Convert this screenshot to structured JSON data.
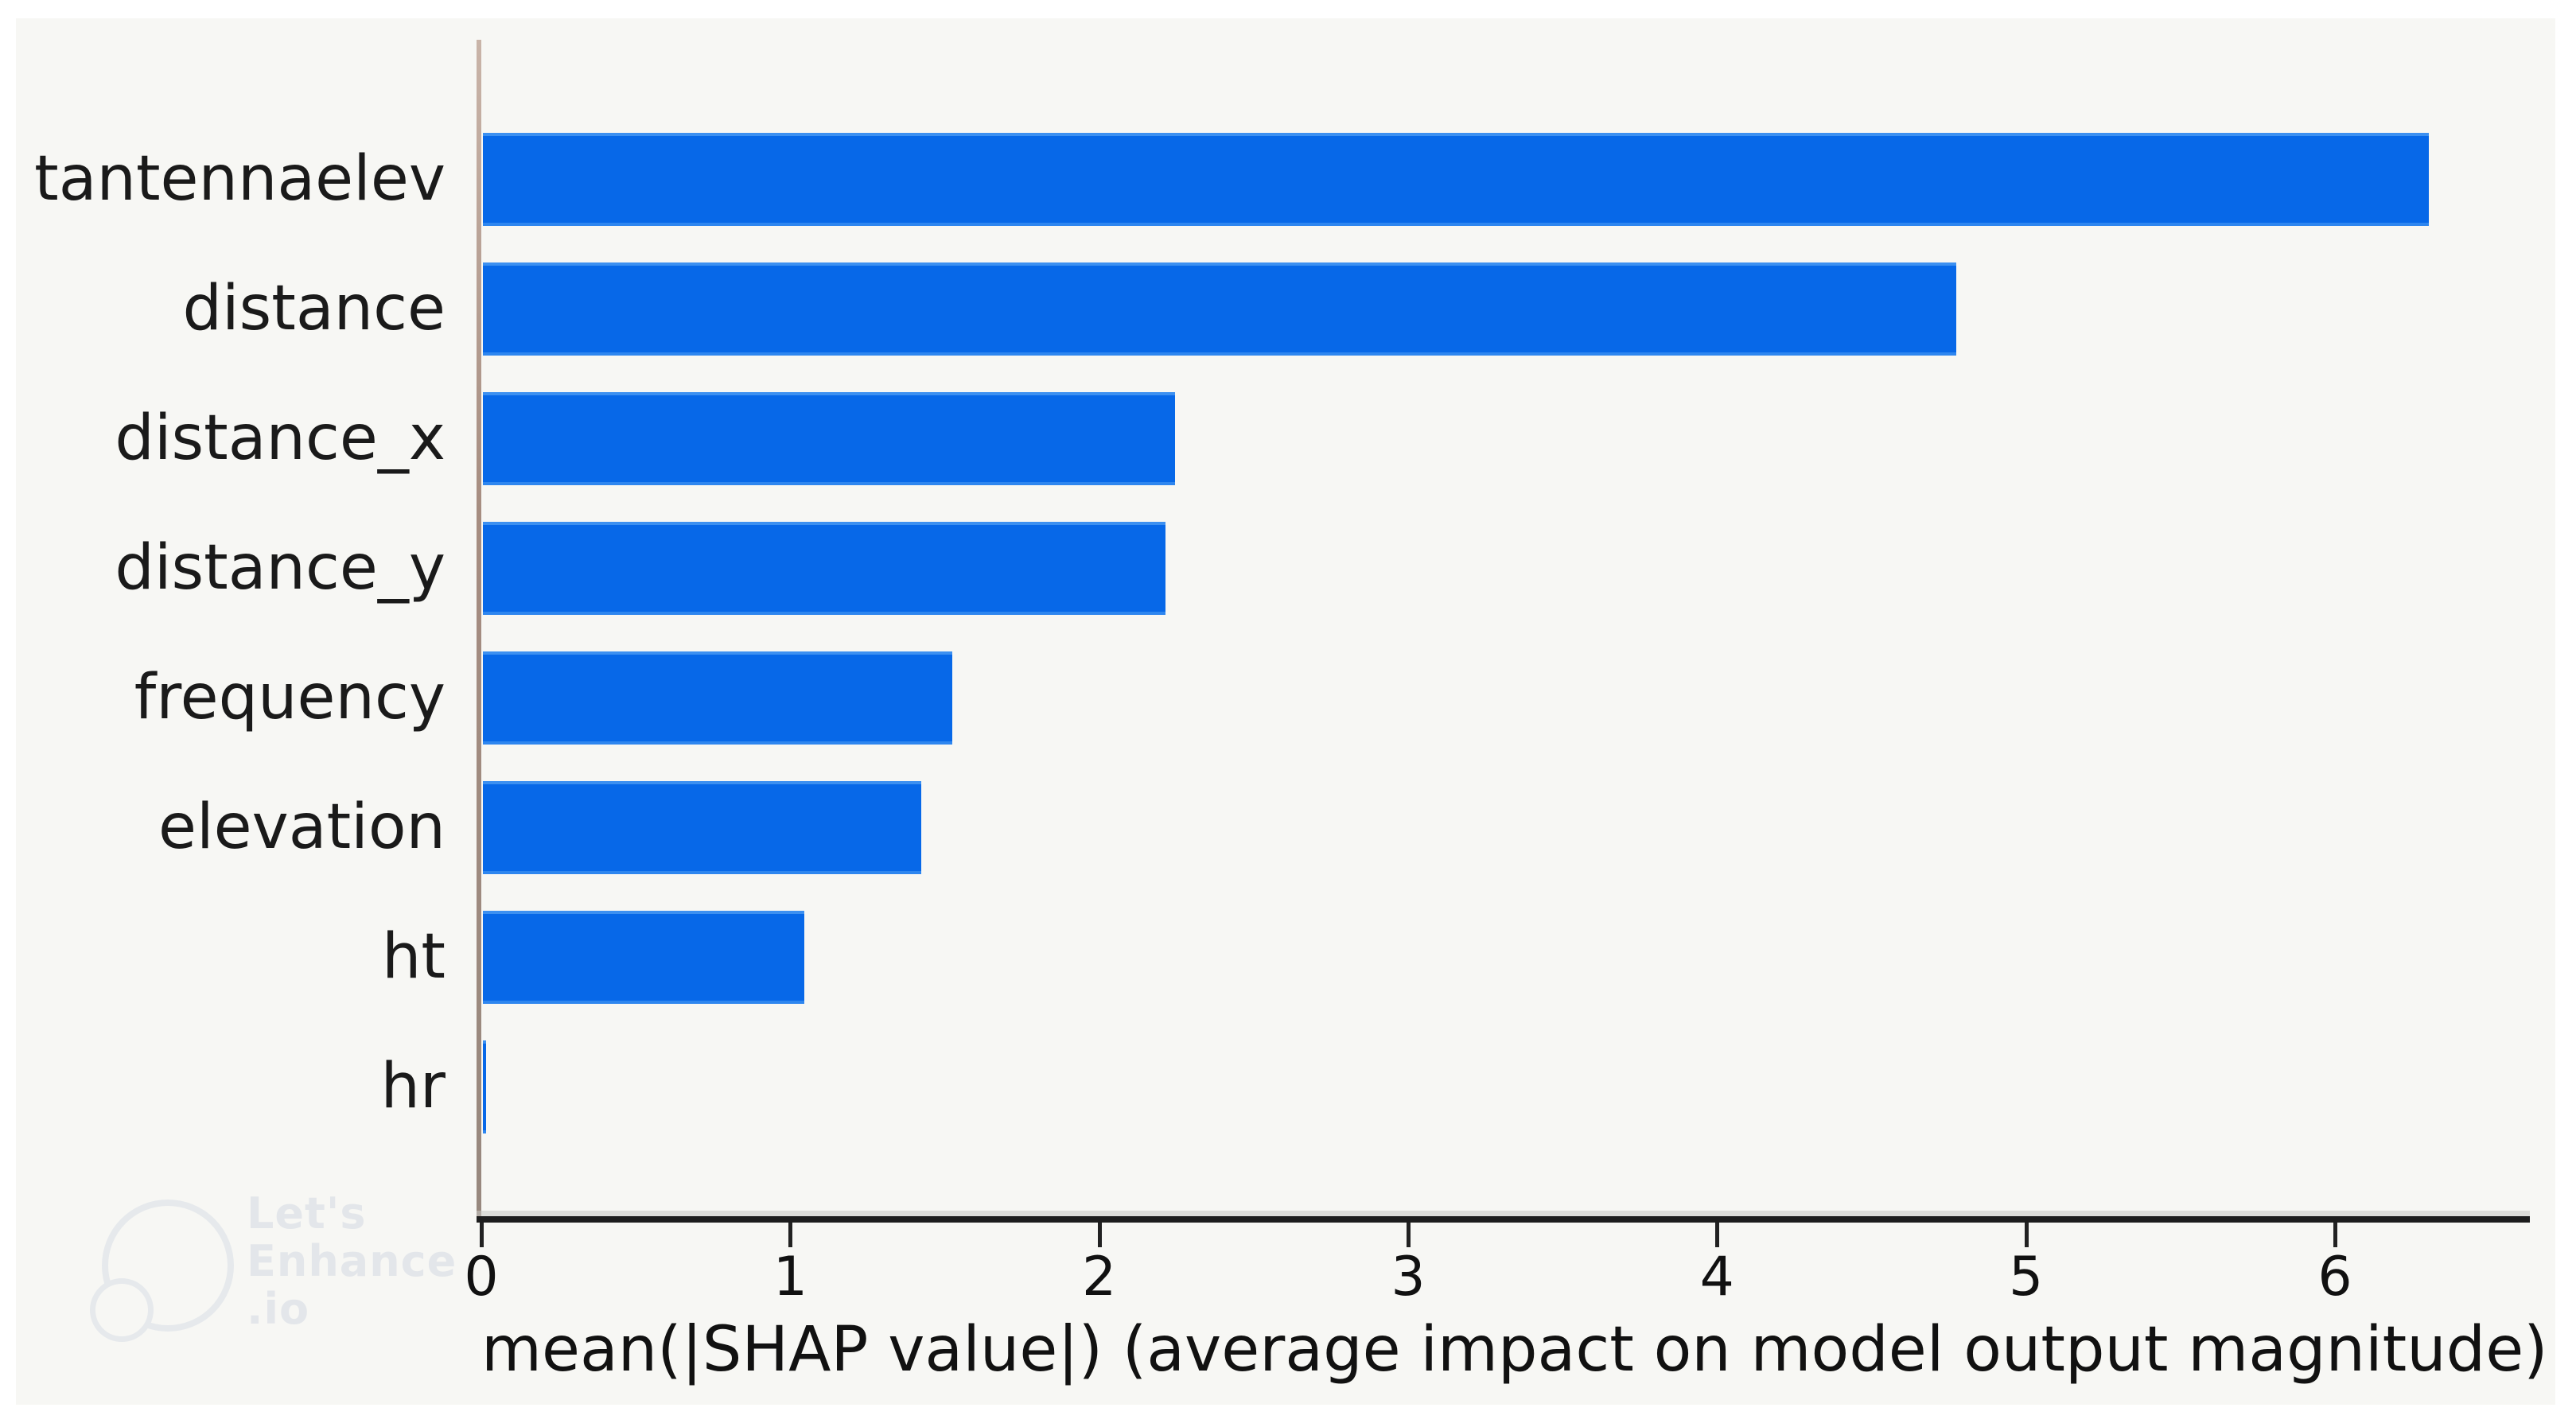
{
  "figure": {
    "page_background": "#ffffff",
    "plot_background": "#f7f7f4"
  },
  "chart_data": {
    "type": "bar",
    "orientation": "horizontal",
    "title": "",
    "xlabel": "mean(|SHAP value|) (average impact on model output magnitude)",
    "ylabel": "",
    "categories": [
      "tantennaelev",
      "distance",
      "distance_x",
      "distance_y",
      "frequency",
      "elevation",
      "ht",
      "hr"
    ],
    "values": [
      6.3,
      4.77,
      2.24,
      2.21,
      1.52,
      1.42,
      1.04,
      0.01
    ],
    "xticks": [
      "0",
      "1",
      "2",
      "3",
      "4",
      "5",
      "6"
    ],
    "xtick_values": [
      0,
      1,
      2,
      3,
      4,
      5,
      6
    ],
    "xlim": [
      0,
      6.63
    ],
    "grid": false,
    "legend_position": "none",
    "bar_color": "#0768e8",
    "text_color": "#1a1a1a",
    "axis_color": "#1d1d1d",
    "left_spine_color": "#a68d80"
  },
  "watermark": {
    "line1": "Let's",
    "line2": "Enhance",
    "line3": ".io",
    "color": "#e3e6ea"
  }
}
